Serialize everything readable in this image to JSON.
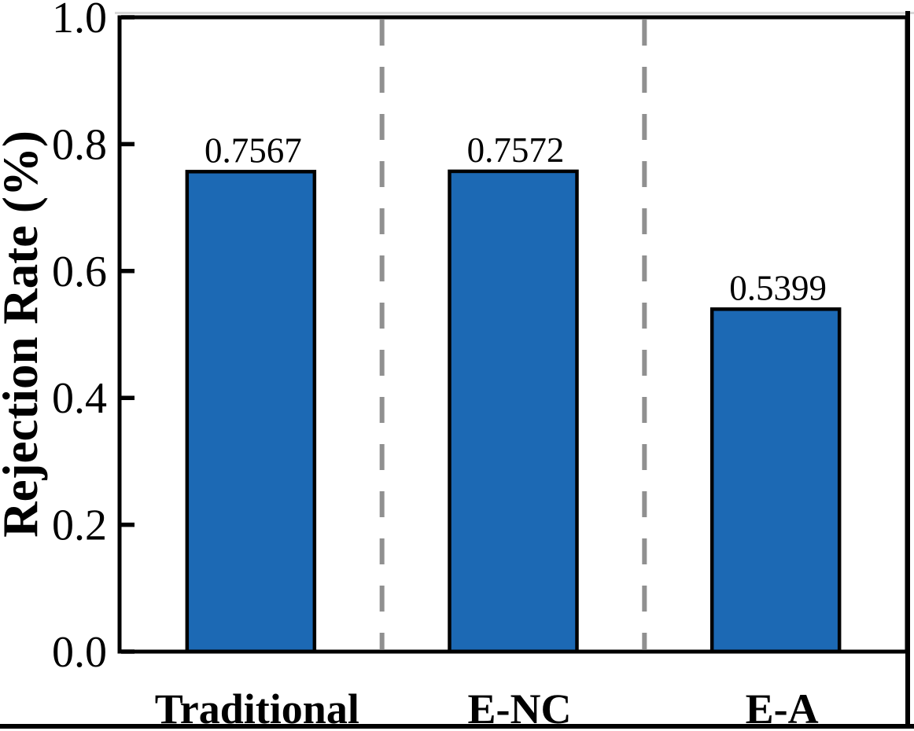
{
  "figure": {
    "background_color": "#ffffff",
    "frame_color": "#000000",
    "border_bottom_color": "#000000",
    "border_right_color": "#000000",
    "border_top_color": "#d8d8d8"
  },
  "chart_data": {
    "type": "bar",
    "categories": [
      "Traditional",
      "E-NC",
      "E-A"
    ],
    "values": [
      0.7567,
      0.7572,
      0.5399
    ],
    "value_labels": [
      "0.7567",
      "0.7572",
      "0.5399"
    ],
    "ylabel": "Rejection Rate (%)",
    "yticks": [
      "0.0",
      "0.2",
      "0.4",
      "0.6",
      "0.8",
      "1.0"
    ],
    "ylim": [
      0.0,
      1.0
    ],
    "grid": false,
    "legend": false,
    "bar_fill_color": "#1C69B4",
    "bar_edge_color": "#000000",
    "separator_color": "#909090",
    "separator_style": "dashed",
    "tick_direction": "in"
  }
}
